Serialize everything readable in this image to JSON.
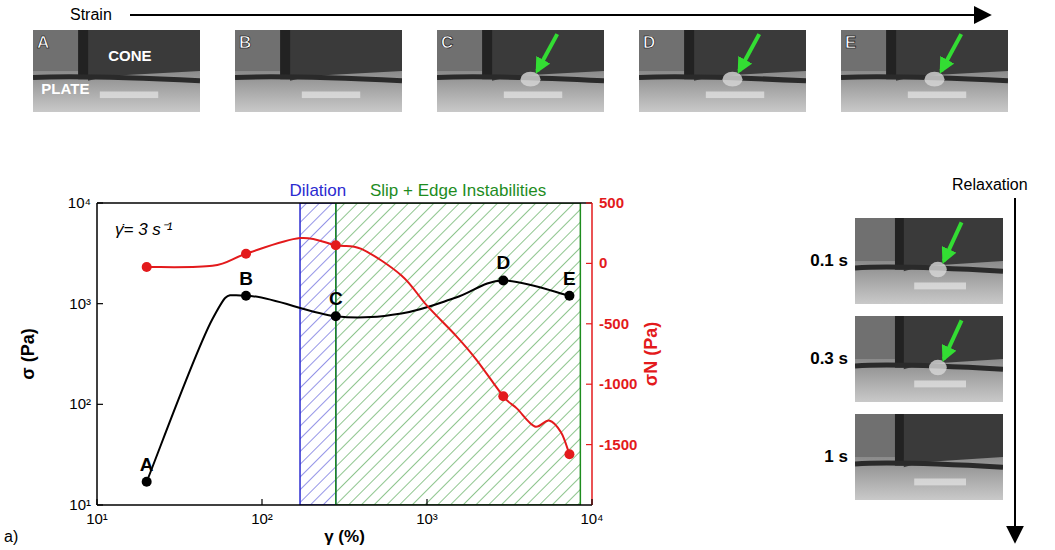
{
  "photos": {
    "strain_label": "Strain",
    "relaxation_label": "Relaxation",
    "cone_label": "CONE",
    "plate_label": "PLATE",
    "strain_frames": [
      {
        "label": "A",
        "arrow": false
      },
      {
        "label": "B",
        "arrow": false
      },
      {
        "label": "C",
        "arrow": true
      },
      {
        "label": "D",
        "arrow": true
      },
      {
        "label": "E",
        "arrow": true
      }
    ],
    "relaxation_frames": [
      {
        "label": "0.1 s",
        "arrow": true
      },
      {
        "label": "0.3 s",
        "arrow": true
      },
      {
        "label": "1 s",
        "arrow": false
      }
    ]
  },
  "chart_data": {
    "type": "line",
    "panel_label": "a)",
    "annotation": "γ̇= 3 s⁻¹",
    "x_label": "γ (%)",
    "y_label": "σ (Pa)",
    "y2_label": "σN (Pa)",
    "log": true,
    "grid": false,
    "xlim": [
      10,
      10000
    ],
    "xticks": [
      {
        "value": 10,
        "label": "10¹"
      },
      {
        "value": 100,
        "label": "10²"
      },
      {
        "value": 1000,
        "label": "10³"
      },
      {
        "value": 10000,
        "label": "10⁴"
      }
    ],
    "ylim": [
      10,
      10000
    ],
    "yticks": [
      {
        "value": 10,
        "label": "10¹"
      },
      {
        "value": 100,
        "label": "10²"
      },
      {
        "value": 1000,
        "label": "10³"
      },
      {
        "value": 10000,
        "label": "10⁴"
      }
    ],
    "y2lim": [
      -2000,
      500
    ],
    "y2ticks": [
      500,
      0,
      -500,
      -1000,
      -1500
    ],
    "regions": [
      {
        "label": "Dilation",
        "x0": 170,
        "x1": 280,
        "color": "#2b2bd0"
      },
      {
        "label": "Slip + Edge Instabilities",
        "x0": 280,
        "x1": 8500,
        "color": "#1e8c1e"
      }
    ],
    "series": [
      {
        "type": "line",
        "marker": "none",
        "color": "#000000",
        "axis": "y",
        "x": [
          20,
          50,
          80,
          280,
          700,
          1500,
          2900,
          7300
        ],
        "values": [
          17,
          700,
          1200,
          750,
          800,
          1150,
          1700,
          1200
        ]
      },
      {
        "type": "scatter",
        "marker": "circle",
        "color": "#000000",
        "axis": "y",
        "x": [
          20,
          80,
          280,
          2900,
          7300
        ],
        "values": [
          17,
          1200,
          750,
          1700,
          1200
        ],
        "point_labels": [
          "A",
          "B",
          "C",
          "D",
          "E"
        ]
      },
      {
        "type": "line",
        "marker": "none",
        "color": "#e31a1c",
        "axis": "y2",
        "x": [
          20,
          50,
          80,
          170,
          280,
          400,
          700,
          1000,
          1500,
          2000,
          2900,
          3500,
          4500,
          5500,
          6500,
          7300
        ],
        "values": [
          -30,
          -20,
          80,
          210,
          150,
          120,
          -100,
          -350,
          -600,
          -800,
          -1100,
          -1200,
          -1350,
          -1300,
          -1400,
          -1580
        ]
      },
      {
        "type": "scatter",
        "marker": "circle",
        "color": "#e31a1c",
        "axis": "y2",
        "x": [
          20,
          80,
          280,
          2900,
          7300
        ],
        "values": [
          -30,
          80,
          150,
          -1100,
          -1580
        ]
      }
    ]
  }
}
